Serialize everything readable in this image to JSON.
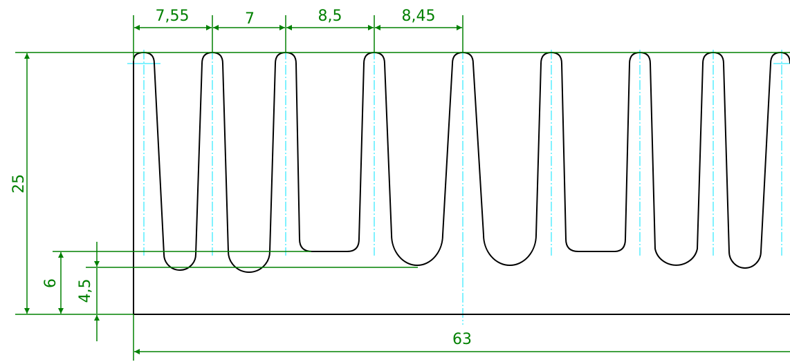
{
  "colors": {
    "outline": "#000000",
    "dimension": "#008000",
    "centerline": "#00e5ff",
    "background": "#ffffff"
  },
  "dimensions": {
    "pitch_1": "7,55",
    "pitch_2": "7",
    "pitch_3": "8,5",
    "pitch_4": "8,45",
    "height_total": "25",
    "height_flat_bottom": "6",
    "height_round_bottom": "4,5",
    "width_total": "63"
  }
}
